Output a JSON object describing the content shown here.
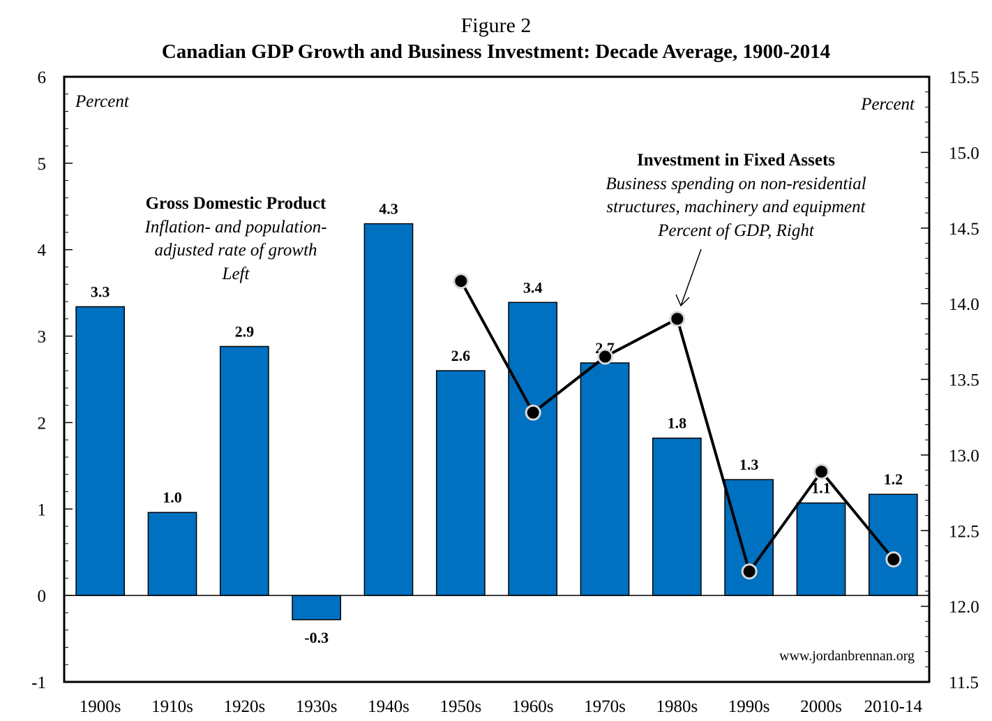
{
  "figure_label": "Figure 2",
  "colors": {
    "bar": "#0070C0",
    "line": "#000000",
    "marker_edge": "#D9D9D9"
  },
  "chart_data": {
    "type": "bar",
    "title": "Canadian GDP Growth and Business Investment: Decade Average, 1900-2014",
    "categories": [
      "1900s",
      "1910s",
      "1920s",
      "1930s",
      "1940s",
      "1950s",
      "1960s",
      "1970s",
      "1980s",
      "1990s",
      "2000s",
      "2010-14"
    ],
    "left_axis": {
      "unit_label": "Percent",
      "ylim": [
        -1,
        6
      ],
      "ticks": [
        6,
        5,
        4,
        3,
        2,
        1,
        0,
        -1
      ]
    },
    "right_axis": {
      "unit_label": "Percent",
      "ylim": [
        11.5,
        15.5
      ],
      "ticks": [
        "15.5",
        "15.0",
        "14.5",
        "14.0",
        "13.5",
        "13.0",
        "12.5",
        "12.0",
        "11.5"
      ]
    },
    "series": [
      {
        "name": "Gross Domestic Product",
        "type": "bar",
        "axis": "left",
        "values": [
          3.34,
          0.96,
          2.88,
          -0.28,
          4.3,
          2.6,
          3.39,
          2.69,
          1.82,
          1.34,
          1.07,
          1.17
        ],
        "data_labels": [
          "3.3",
          "1.0",
          "2.9",
          "-0.3",
          "4.3",
          "2.6",
          "3.4",
          "2.7",
          "1.8",
          "1.3",
          "1.1",
          "1.2"
        ]
      },
      {
        "name": "Investment in Fixed Assets",
        "type": "line",
        "axis": "right",
        "values": [
          null,
          null,
          null,
          null,
          null,
          14.15,
          13.28,
          13.65,
          13.9,
          12.23,
          12.89,
          12.31
        ]
      }
    ],
    "annotations": {
      "gdp": {
        "title": "Gross Domestic Product",
        "lines": [
          "Inflation- and population-",
          "adjusted rate of growth",
          "Left"
        ]
      },
      "investment": {
        "title": "Investment in Fixed Assets",
        "lines": [
          "Business spending on non-residential",
          "structures, machinery and equipment",
          "Percent of GDP, Right"
        ]
      }
    },
    "source": "www.jordanbrennan.org"
  }
}
